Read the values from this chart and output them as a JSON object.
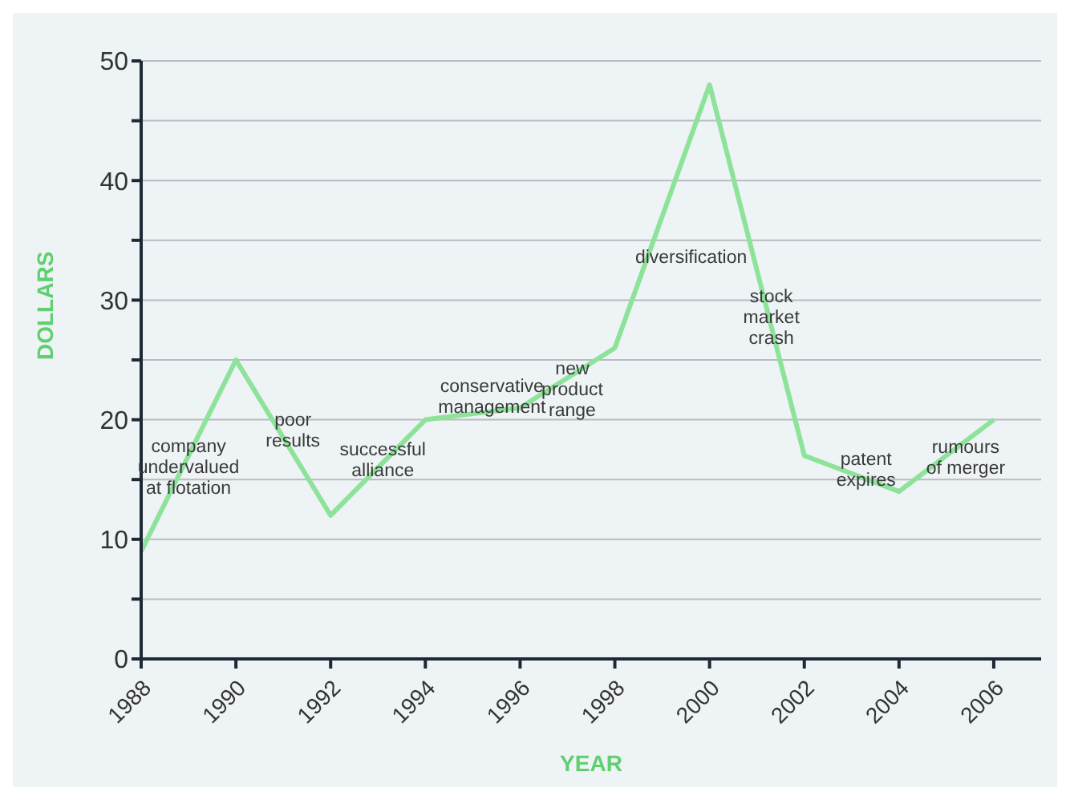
{
  "chart_data": {
    "type": "line",
    "xlabel": "YEAR",
    "ylabel": "DOLLARS",
    "x": [
      1988,
      1990,
      1992,
      1994,
      1996,
      1998,
      2000,
      2002,
      2004,
      2006
    ],
    "series": [
      {
        "color": "#8ee39a",
        "values": [
          9,
          25,
          12,
          20,
          21,
          26,
          48,
          17,
          14,
          20
        ]
      }
    ],
    "xlim": [
      1988,
      2007
    ],
    "xticks": [
      1988,
      1990,
      1992,
      1994,
      1996,
      1998,
      2000,
      2002,
      2004,
      2006
    ],
    "ylim": [
      0,
      50
    ],
    "yticks": [
      0,
      {
        "value": 5,
        "label": null
      },
      10,
      {
        "value": 15,
        "label": null
      },
      20,
      {
        "value": 25,
        "label": null
      },
      30,
      {
        "value": 35,
        "label": null
      },
      40,
      {
        "value": 45,
        "label": null
      },
      50
    ],
    "grid": "y",
    "annotations": [
      "company\nundervalued\nat flotation",
      "poor\nresults",
      "successful\nalliance",
      "conservative\nmanagement",
      "new\nproduct\nrange",
      "diversification",
      "stock\nmarket\ncrash",
      "patent\nexpires",
      "rumours\nof merger"
    ]
  }
}
